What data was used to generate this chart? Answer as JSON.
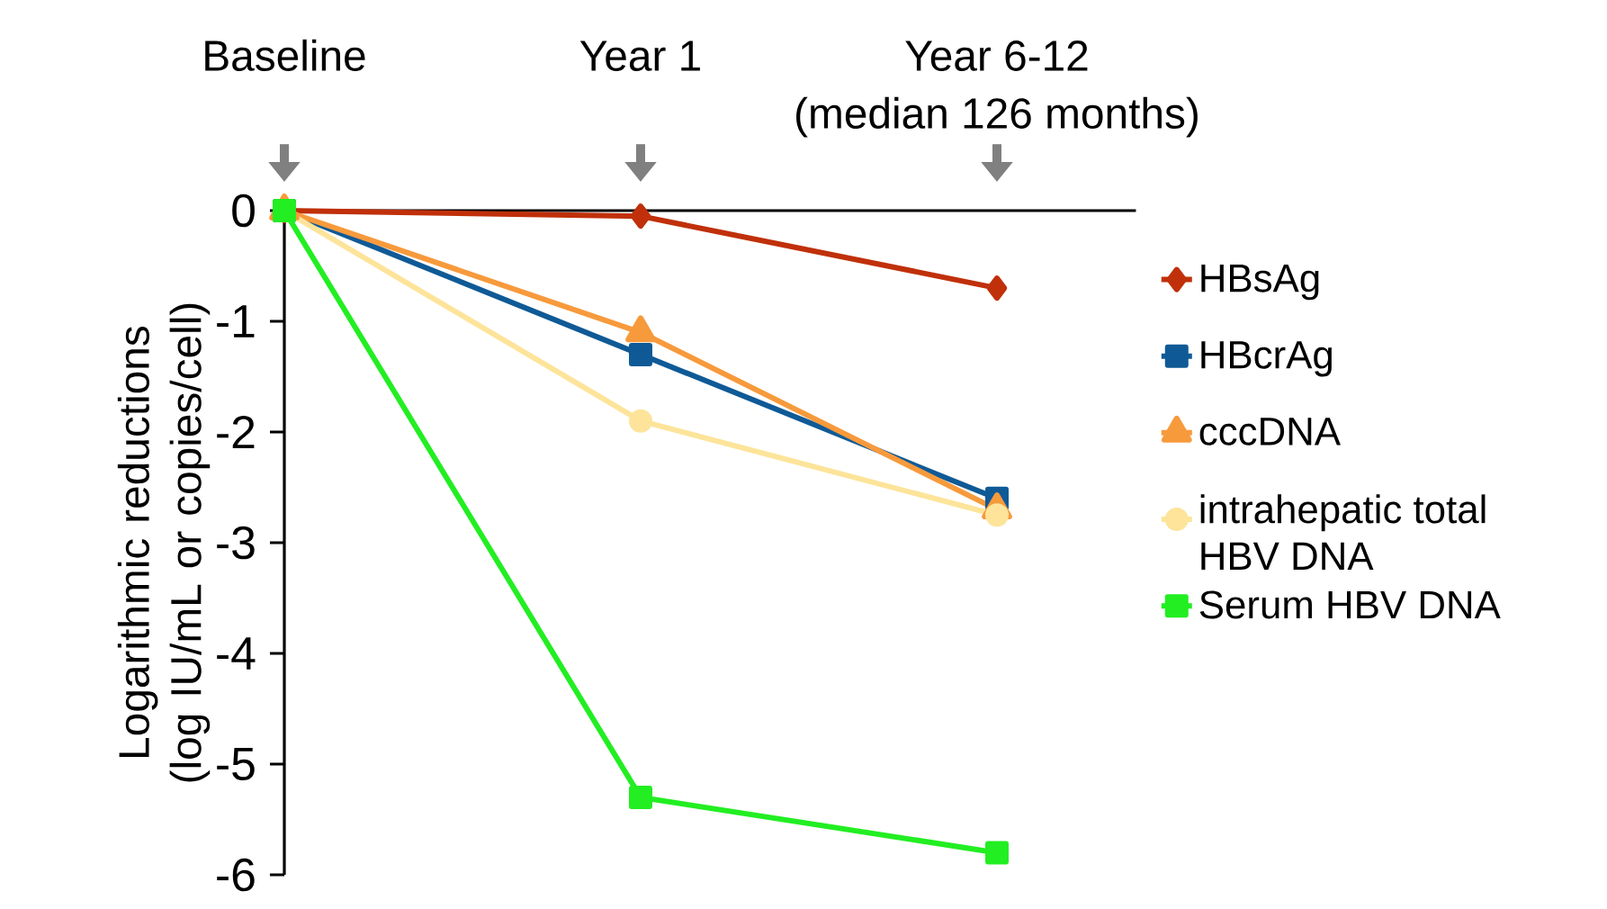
{
  "chart_data": {
    "type": "line",
    "ylabel": "Logarithmic reductions (log IU/mL or copies/cell)",
    "categories": [
      "Baseline",
      "Year 1",
      "Year 6-12"
    ],
    "ylim": [
      -6,
      0
    ],
    "yticks": [
      0,
      -1,
      -2,
      -3,
      -4,
      -5,
      -6
    ],
    "legend": "right",
    "line_style": "solid",
    "annotations": [
      "(median 126 months)"
    ],
    "series": [
      {
        "name": "HBsAg",
        "color": "#c0300a",
        "marker": "diamond",
        "values": [
          0,
          -0.05,
          -0.7
        ]
      },
      {
        "name": "HBcrAg",
        "color": "#0f5a96",
        "marker": "square",
        "values": [
          0,
          -1.3,
          -2.6
        ]
      },
      {
        "name": "cccDNA",
        "color": "#f79a3c",
        "marker": "triangle",
        "values": [
          0,
          -1.1,
          -2.7
        ]
      },
      {
        "name": "intrahepatic total HBV DNA",
        "color": "#fde49a",
        "marker": "circle",
        "values": [
          0,
          -1.9,
          -2.75
        ]
      },
      {
        "name": "Serum HBV DNA",
        "color": "#22ee22",
        "marker": "square",
        "values": [
          0,
          -5.3,
          -5.8
        ]
      }
    ]
  }
}
